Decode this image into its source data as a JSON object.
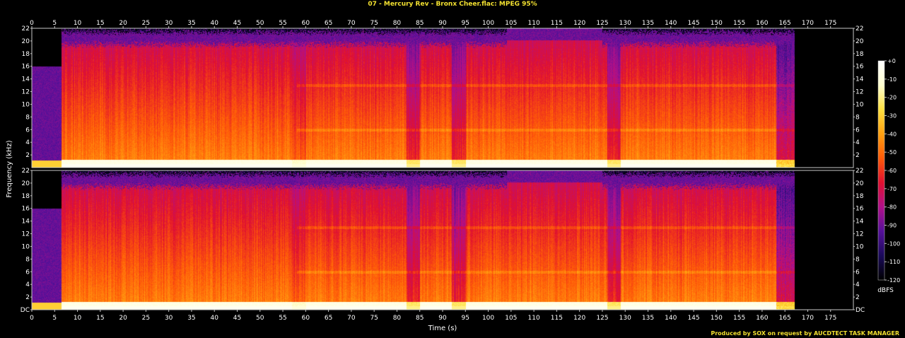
{
  "header": {
    "title": "07 - Mercury Rev - Bronx Cheer.flac: MPEG 95%"
  },
  "footer": {
    "credit": "Produced by SOX on request by AUCDTECT TASK MANAGER"
  },
  "colors": {
    "background": "#000000",
    "title": "#f2e030",
    "axis": "#c8c8c8",
    "text": "#ffffff",
    "palette": [
      "#000000",
      "#1a0a5a",
      "#55109a",
      "#b0108a",
      "#e01030",
      "#ff5a08",
      "#ffa010",
      "#ffe040",
      "#ffffd0",
      "#ffffff"
    ]
  },
  "chart_data": {
    "type": "heatmap",
    "subtype": "spectrogram",
    "channels": 2,
    "xlabel": "Time (s)",
    "ylabel": "Frequency (kHz)",
    "xlim": [
      0,
      180
    ],
    "ylim": [
      0,
      22
    ],
    "x_ticks": [
      "0",
      "5",
      "10",
      "15",
      "20",
      "25",
      "30",
      "35",
      "40",
      "45",
      "50",
      "55",
      "60",
      "65",
      "70",
      "75",
      "80",
      "85",
      "90",
      "95",
      "100",
      "105",
      "110",
      "115",
      "120",
      "125",
      "130",
      "135",
      "140",
      "145",
      "150",
      "155",
      "160",
      "165",
      "170",
      "175"
    ],
    "y_ticks_top": [
      "2",
      "4",
      "6",
      "8",
      "10",
      "12",
      "14",
      "16",
      "18",
      "20",
      "22"
    ],
    "y_ticks_bottom": [
      "DC",
      "2",
      "4",
      "6",
      "8",
      "10",
      "12",
      "14",
      "16",
      "18",
      "20",
      "22"
    ],
    "duration_s": 167,
    "silence_end_s": 6.5,
    "content": {
      "note": "intensity in dBFS, time in s",
      "intro": {
        "t": [
          0,
          6.5
        ],
        "cutoff_khz": 16,
        "level_dbfs": -95
      },
      "body_cutoff_khz": 19.5,
      "body_level_dbfs": -45,
      "tonal_lines_khz": [
        13,
        6
      ],
      "dark_bands_s": [
        [
          82,
          85
        ],
        [
          92,
          95
        ],
        [
          126,
          129
        ]
      ],
      "outro_fade_s": [
        163,
        167
      ]
    },
    "colorbar": {
      "label": "dBFS",
      "ticks": [
        "+0",
        "-10",
        "-20",
        "-30",
        "-40",
        "-50",
        "-60",
        "-70",
        "-80",
        "-90",
        "-100",
        "-110",
        "-120"
      ],
      "range": [
        -120,
        0
      ]
    }
  }
}
